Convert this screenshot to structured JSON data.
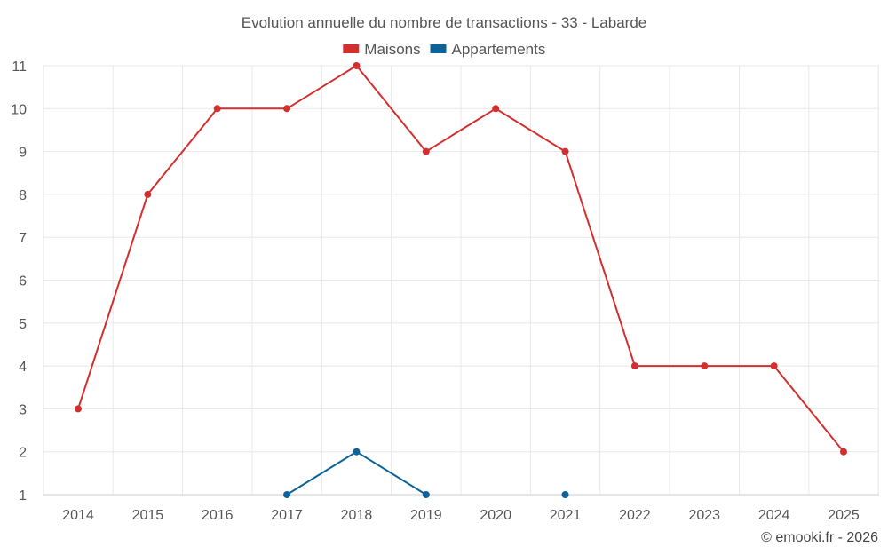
{
  "chart_data": {
    "type": "line",
    "title": "Evolution annuelle du nombre de transactions - 33 - Labarde",
    "categories": [
      "2014",
      "2015",
      "2016",
      "2017",
      "2018",
      "2019",
      "2020",
      "2021",
      "2022",
      "2023",
      "2024",
      "2025"
    ],
    "ylim": [
      1,
      11
    ],
    "yticks": [
      1,
      2,
      3,
      4,
      5,
      6,
      7,
      8,
      9,
      10,
      11
    ],
    "grid": true,
    "legend_position": "top-center",
    "series": [
      {
        "name": "Maisons",
        "color": "#d32f2f",
        "values": [
          3,
          8,
          10,
          10,
          11,
          9,
          10,
          9,
          4,
          4,
          4,
          2
        ]
      },
      {
        "name": "Appartements",
        "color": "#0b6399",
        "values": [
          null,
          null,
          null,
          1,
          2,
          1,
          null,
          1,
          null,
          null,
          null,
          null
        ]
      }
    ],
    "credit": "© emooki.fr - 2026"
  }
}
